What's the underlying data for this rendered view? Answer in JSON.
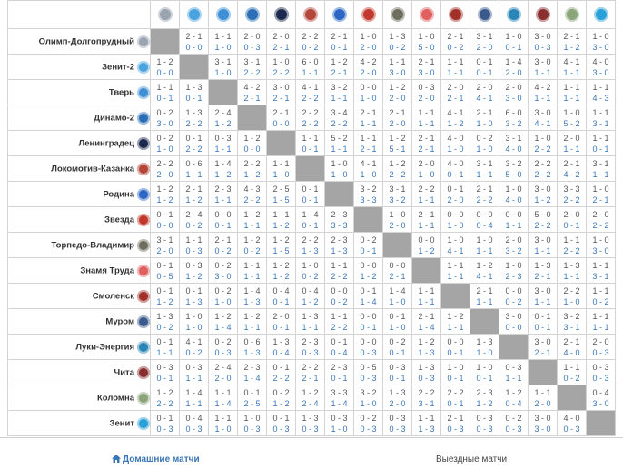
{
  "teams": [
    {
      "name": "Олимп-Долгопрудный",
      "color": "#9aa3b0"
    },
    {
      "name": "Зенит-2",
      "color": "#4aa3de"
    },
    {
      "name": "Тверь",
      "color": "#3f8fd6"
    },
    {
      "name": "Динамо-2",
      "color": "#2c6fb7"
    },
    {
      "name": "Ленинградец",
      "color": "#1d2a4f"
    },
    {
      "name": "Локомотив-Казанка",
      "color": "#b3483a"
    },
    {
      "name": "Родина",
      "color": "#2d66c4"
    },
    {
      "name": "Звезда",
      "color": "#c23a2e"
    },
    {
      "name": "Торпедо-Владимир",
      "color": "#6e6e5e"
    },
    {
      "name": "Знамя Труда",
      "color": "#e06060"
    },
    {
      "name": "Смоленск",
      "color": "#a13028"
    },
    {
      "name": "Муром",
      "color": "#3a5a8c"
    },
    {
      "name": "Луки-Энергия",
      "color": "#2a86b6"
    },
    {
      "name": "Чита",
      "color": "#8a2f2f"
    },
    {
      "name": "Коломна",
      "color": "#8aa57a"
    },
    {
      "name": "Зенит",
      "color": "#2aa0d8"
    }
  ],
  "results": [
    [
      null,
      [
        "2 - 1",
        "0 - 0"
      ],
      [
        "1 - 1",
        "1 - 0"
      ],
      [
        "2 - 0",
        "0 - 3"
      ],
      [
        "2 - 0",
        "2 - 1"
      ],
      [
        "2 - 2",
        "0 - 2"
      ],
      [
        "2 - 1",
        "0 - 1"
      ],
      [
        "1 - 0",
        "2 - 0"
      ],
      [
        "1 - 3",
        "0 - 2"
      ],
      [
        "1 - 0",
        "5 - 0"
      ],
      [
        "2 - 1",
        "0 - 2"
      ],
      [
        "3 - 1",
        "2 - 0"
      ],
      [
        "1 - 0",
        "0 - 1"
      ],
      [
        "3 - 0",
        "0 - 3"
      ],
      [
        "2 - 1",
        "1 - 2"
      ],
      [
        "1 - 0",
        "3 - 0"
      ]
    ],
    [
      [
        "1 - 2",
        "0 - 0"
      ],
      null,
      [
        "3 - 1",
        "1 - 0"
      ],
      [
        "3 - 1",
        "2 - 2"
      ],
      [
        "1 - 0",
        "2 - 2"
      ],
      [
        "6 - 0",
        "1 - 1"
      ],
      [
        "1 - 2",
        "2 - 1"
      ],
      [
        "4 - 2",
        "2 - 0"
      ],
      [
        "1 - 1",
        "3 - 0"
      ],
      [
        "2 - 1",
        "3 - 0"
      ],
      [
        "1 - 1",
        "1 - 1"
      ],
      [
        "0 - 1",
        "0 - 1"
      ],
      [
        "1 - 4",
        "2 - 0"
      ],
      [
        "3 - 0",
        "1 - 1"
      ],
      [
        "4 - 1",
        "1 - 1"
      ],
      [
        "4 - 0",
        "3 - 0"
      ]
    ],
    [
      [
        "1 - 1",
        "0 - 1"
      ],
      [
        "1 - 3",
        "0 - 1"
      ],
      null,
      [
        "4 - 2",
        "2 - 1"
      ],
      [
        "3 - 0",
        "2 - 1"
      ],
      [
        "4 - 1",
        "2 - 2"
      ],
      [
        "3 - 2",
        "1 - 1"
      ],
      [
        "0 - 0",
        "1 - 0"
      ],
      [
        "1 - 2",
        "2 - 0"
      ],
      [
        "0 - 3",
        "2 - 0"
      ],
      [
        "2 - 0",
        "2 - 1"
      ],
      [
        "2 - 0",
        "4 - 1"
      ],
      [
        "2 - 0",
        "3 - 0"
      ],
      [
        "4 - 2",
        "1 - 1"
      ],
      [
        "1 - 1",
        "1 - 1"
      ],
      [
        "1 - 1",
        "4 - 3"
      ]
    ],
    [
      [
        "0 - 2",
        "3 - 0"
      ],
      [
        "1 - 3",
        "2 - 2"
      ],
      [
        "2 - 4",
        "1 - 2"
      ],
      null,
      [
        "2 - 1",
        "0 - 0"
      ],
      [
        "2 - 2",
        "2 - 2"
      ],
      [
        "3 - 4",
        "2 - 2"
      ],
      [
        "2 - 1",
        "1 - 1"
      ],
      [
        "2 - 1",
        "2 - 0"
      ],
      [
        "1 - 1",
        "1 - 1"
      ],
      [
        "4 - 1",
        "1 - 2"
      ],
      [
        "2 - 1",
        "1 - 0"
      ],
      [
        "6 - 0",
        "3 - 2"
      ],
      [
        "3 - 0",
        "4 - 1"
      ],
      [
        "1 - 0",
        "5 - 2"
      ],
      [
        "1 - 1",
        "3 - 1"
      ]
    ],
    [
      [
        "0 - 2",
        "1 - 0"
      ],
      [
        "0 - 1",
        "2 - 2"
      ],
      [
        "0 - 3",
        "1 - 1"
      ],
      [
        "1 - 2",
        "0 - 0"
      ],
      null,
      [
        "1 - 1",
        "0 - 1"
      ],
      [
        "5 - 2",
        "1 - 1"
      ],
      [
        "1 - 1",
        "2 - 1"
      ],
      [
        "1 - 2",
        "5 - 1"
      ],
      [
        "2 - 1",
        "2 - 1"
      ],
      [
        "4 - 0",
        "1 - 0"
      ],
      [
        "0 - 2",
        "1 - 0"
      ],
      [
        "3 - 1",
        "4 - 0"
      ],
      [
        "1 - 0",
        "2 - 2"
      ],
      [
        "2 - 0",
        "1 - 1"
      ],
      [
        "1 - 1",
        "0 - 1"
      ]
    ],
    [
      [
        "2 - 2",
        "2 - 0"
      ],
      [
        "0 - 6",
        "1 - 1"
      ],
      [
        "1 - 4",
        "1 - 2"
      ],
      [
        "2 - 2",
        "1 - 2"
      ],
      [
        "1 - 1",
        "1 - 0"
      ],
      null,
      [
        "1 - 0",
        "1 - 0"
      ],
      [
        "4 - 1",
        "1 - 0"
      ],
      [
        "1 - 2",
        "2 - 2"
      ],
      [
        "2 - 0",
        "1 - 0"
      ],
      [
        "4 - 0",
        "0 - 1"
      ],
      [
        "3 - 1",
        "1 - 1"
      ],
      [
        "3 - 2",
        "5 - 0"
      ],
      [
        "2 - 2",
        "2 - 2"
      ],
      [
        "2 - 1",
        "4 - 2"
      ],
      [
        "3 - 1",
        "1 - 1"
      ]
    ],
    [
      [
        "1 - 2",
        "1 - 2"
      ],
      [
        "2 - 1",
        "1 - 2"
      ],
      [
        "2 - 3",
        "1 - 1"
      ],
      [
        "4 - 3",
        "2 - 2"
      ],
      [
        "2 - 5",
        "1 - 5"
      ],
      [
        "0 - 1",
        "0 - 1"
      ],
      null,
      [
        "3 - 2",
        "3 - 3"
      ],
      [
        "3 - 1",
        "3 - 2"
      ],
      [
        "2 - 2",
        "1 - 1"
      ],
      [
        "0 - 1",
        "2 - 0"
      ],
      [
        "2 - 1",
        "2 - 2"
      ],
      [
        "1 - 0",
        "4 - 0"
      ],
      [
        "3 - 0",
        "1 - 2"
      ],
      [
        "3 - 3",
        "2 - 2"
      ],
      [
        "1 - 0",
        "2 - 1"
      ]
    ],
    [
      [
        "0 - 1",
        "0 - 0"
      ],
      [
        "2 - 4",
        "0 - 2"
      ],
      [
        "0 - 0",
        "0 - 1"
      ],
      [
        "1 - 2",
        "1 - 1"
      ],
      [
        "1 - 1",
        "1 - 2"
      ],
      [
        "1 - 4",
        "0 - 1"
      ],
      [
        "2 - 3",
        "3 - 3"
      ],
      null,
      [
        "1 - 0",
        "2 - 0"
      ],
      [
        "2 - 1",
        "1 - 1"
      ],
      [
        "0 - 0",
        "1 - 0"
      ],
      [
        "0 - 0",
        "0 - 4"
      ],
      [
        "0 - 0",
        "1 - 1"
      ],
      [
        "5 - 0",
        "2 - 2"
      ],
      [
        "2 - 0",
        "0 - 1"
      ],
      [
        "2 - 0",
        "2 - 2"
      ]
    ],
    [
      [
        "3 - 1",
        "2 - 0"
      ],
      [
        "1 - 1",
        "0 - 3"
      ],
      [
        "2 - 1",
        "0 - 2"
      ],
      [
        "1 - 2",
        "0 - 2"
      ],
      [
        "1 - 2",
        "1 - 5"
      ],
      [
        "2 - 2",
        "1 - 3"
      ],
      [
        "2 - 3",
        "1 - 3"
      ],
      [
        "0 - 2",
        "0 - 1"
      ],
      null,
      [
        "0 - 0",
        "1 - 2"
      ],
      [
        "1 - 0",
        "4 - 1"
      ],
      [
        "1 - 0",
        "1 - 1"
      ],
      [
        "2 - 0",
        "3 - 2"
      ],
      [
        "3 - 0",
        "1 - 1"
      ],
      [
        "1 - 1",
        "2 - 2"
      ],
      [
        "1 - 0",
        "3 - 0"
      ]
    ],
    [
      [
        "0 - 1",
        "0 - 5"
      ],
      [
        "0 - 3",
        "1 - 2"
      ],
      [
        "0 - 2",
        "3 - 0"
      ],
      [
        "1 - 1",
        "1 - 1"
      ],
      [
        "1 - 2",
        "1 - 2"
      ],
      [
        "1 - 0",
        "0 - 2"
      ],
      [
        "1 - 1",
        "2 - 2"
      ],
      [
        "0 - 0",
        "1 - 2"
      ],
      [
        "0 - 0",
        "2 - 1"
      ],
      null,
      [
        "1 - 1",
        "1 - 1"
      ],
      [
        "1 - 2",
        "4 - 1"
      ],
      [
        "1 - 0",
        "2 - 3"
      ],
      [
        "1 - 3",
        "2 - 1"
      ],
      [
        "1 - 3",
        "1 - 1"
      ],
      [
        "1 - 1",
        "3 - 1"
      ]
    ],
    [
      [
        "0 - 1",
        "1 - 2"
      ],
      [
        "0 - 1",
        "1 - 3"
      ],
      [
        "0 - 2",
        "1 - 0"
      ],
      [
        "1 - 4",
        "1 - 3"
      ],
      [
        "0 - 4",
        "0 - 1"
      ],
      [
        "0 - 4",
        "1 - 2"
      ],
      [
        "0 - 0",
        "0 - 2"
      ],
      [
        "0 - 1",
        "1 - 4"
      ],
      [
        "1 - 4",
        "1 - 0"
      ],
      [
        "1 - 1",
        "1 - 1"
      ],
      null,
      [
        "2 - 1",
        "1 - 1"
      ],
      [
        "0 - 0",
        "0 - 2"
      ],
      [
        "3 - 0",
        "1 - 1"
      ],
      [
        "2 - 2",
        "1 - 0"
      ],
      [
        "1 - 1",
        "0 - 2"
      ]
    ],
    [
      [
        "1 - 3",
        "0 - 2"
      ],
      [
        "1 - 0",
        "1 - 0"
      ],
      [
        "1 - 2",
        "1 - 4"
      ],
      [
        "1 - 2",
        "1 - 1"
      ],
      [
        "2 - 0",
        "0 - 1"
      ],
      [
        "1 - 3",
        "1 - 1"
      ],
      [
        "1 - 1",
        "2 - 2"
      ],
      [
        "0 - 0",
        "0 - 1"
      ],
      [
        "0 - 1",
        "1 - 0"
      ],
      [
        "2 - 1",
        "1 - 4"
      ],
      [
        "1 - 2",
        "1 - 1"
      ],
      null,
      [
        "3 - 0",
        "0 - 0"
      ],
      [
        "0 - 1",
        "0 - 1"
      ],
      [
        "3 - 2",
        "3 - 1"
      ],
      [
        "1 - 1",
        "1 - 1"
      ]
    ],
    [
      [
        "0 - 1",
        "1 - 1"
      ],
      [
        "4 - 1",
        "0 - 2"
      ],
      [
        "0 - 2",
        "0 - 3"
      ],
      [
        "0 - 6",
        "1 - 3"
      ],
      [
        "1 - 3",
        "0 - 4"
      ],
      [
        "2 - 3",
        "0 - 3"
      ],
      [
        "0 - 1",
        "0 - 4"
      ],
      [
        "0 - 0",
        "0 - 3"
      ],
      [
        "0 - 2",
        "0 - 1"
      ],
      [
        "1 - 2",
        "1 - 3"
      ],
      [
        "0 - 0",
        "0 - 1"
      ],
      [
        "1 - 3",
        "1 - 0"
      ],
      null,
      [
        "3 - 0",
        "2 - 1"
      ],
      [
        "2 - 1",
        "4 - 0"
      ],
      [
        "2 - 0",
        "0 - 3"
      ]
    ],
    [
      [
        "0 - 3",
        "0 - 1"
      ],
      [
        "0 - 3",
        "1 - 1"
      ],
      [
        "2 - 4",
        "2 - 0"
      ],
      [
        "2 - 3",
        "1 - 4"
      ],
      [
        "0 - 1",
        "2 - 2"
      ],
      [
        "2 - 2",
        "2 - 1"
      ],
      [
        "2 - 3",
        "0 - 1"
      ],
      [
        "0 - 5",
        "0 - 3"
      ],
      [
        "0 - 3",
        "0 - 1"
      ],
      [
        "1 - 3",
        "0 - 3"
      ],
      [
        "1 - 0",
        "0 - 1"
      ],
      [
        "1 - 0",
        "0 - 1"
      ],
      [
        "0 - 3",
        "1 - 1"
      ],
      null,
      [
        "1 - 1",
        "0 - 2"
      ],
      [
        "0 - 3",
        "0 - 3"
      ]
    ],
    [
      [
        "1 - 2",
        "2 - 2"
      ],
      [
        "1 - 4",
        "1 - 1"
      ],
      [
        "1 - 1",
        "1 - 4"
      ],
      [
        "0 - 1",
        "2 - 5"
      ],
      [
        "0 - 2",
        "1 - 2"
      ],
      [
        "1 - 2",
        "2 - 4"
      ],
      [
        "3 - 3",
        "1 - 4"
      ],
      [
        "3 - 2",
        "1 - 0"
      ],
      [
        "1 - 3",
        "2 - 0"
      ],
      [
        "2 - 2",
        "3 - 1"
      ],
      [
        "2 - 2",
        "0 - 1"
      ],
      [
        "2 - 3",
        "1 - 2"
      ],
      [
        "1 - 2",
        "0 - 4"
      ],
      [
        "1 - 1",
        "2 - 0"
      ],
      null,
      [
        "0 - 4",
        "3 - 0"
      ]
    ],
    [
      [
        "0 - 1",
        "0 - 3"
      ],
      [
        "0 - 4",
        "0 - 3"
      ],
      [
        "1 - 1",
        "1 - 0"
      ],
      [
        "1 - 0",
        "0 - 3"
      ],
      [
        "0 - 1",
        "0 - 3"
      ],
      [
        "1 - 3",
        "0 - 3"
      ],
      [
        "0 - 3",
        "1 - 0"
      ],
      [
        "0 - 2",
        "0 - 3"
      ],
      [
        "0 - 3",
        "0 - 3"
      ],
      [
        "1 - 1",
        "1 - 3"
      ],
      [
        "2 - 1",
        "0 - 3"
      ],
      [
        "0 - 3",
        "0 - 3"
      ],
      [
        "0 - 2",
        "0 - 3"
      ],
      [
        "3 - 0",
        "3 - 0"
      ],
      [
        "4 - 0",
        "0 - 3"
      ],
      null
    ]
  ],
  "footer": {
    "home_label": "Домашние матчи",
    "away_label": "Выездные матчи"
  }
}
